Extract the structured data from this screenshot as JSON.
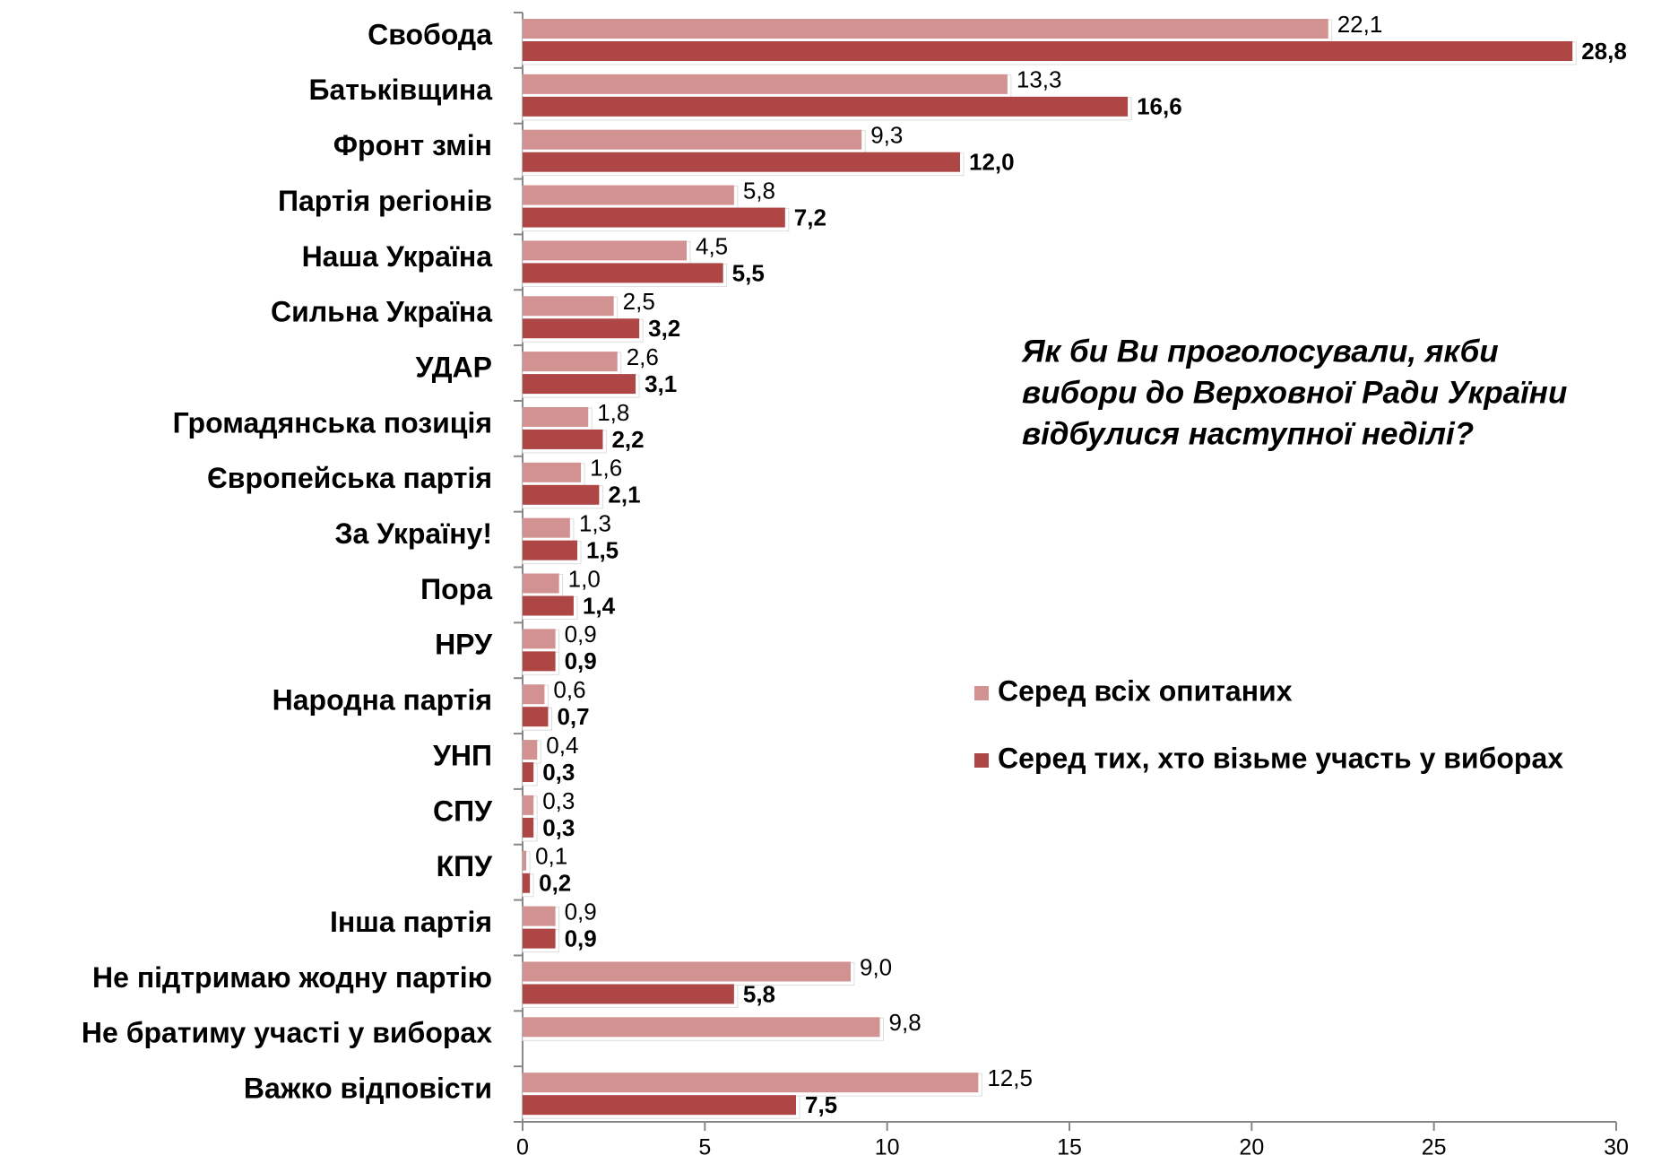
{
  "chart_data": {
    "type": "bar",
    "orientation": "horizontal",
    "annotation": [
      "Як би Ви проголосували, якби",
      "вибори до Верховної Ради України",
      "відбулися наступної неділі?"
    ],
    "categories": [
      "Свобода",
      "Батьківщина",
      "Фронт змін",
      "Партія регіонів",
      "Наша Україна",
      "Сильна Україна",
      "УДАР",
      "Громадянська позиція",
      "Європейська партія",
      "За Україну!",
      "Пора",
      "НРУ",
      "Народна партія",
      "УНП",
      "СПУ",
      "КПУ",
      "Інша партія",
      "Не підтримаю жодну партію",
      "Не братиму участі у виборах",
      "Важко відповісти"
    ],
    "series": [
      {
        "name": "Серед всіх опитаних",
        "color": "#d39292",
        "values": [
          22.1,
          13.3,
          9.3,
          5.8,
          4.5,
          2.5,
          2.6,
          1.8,
          1.6,
          1.3,
          1.0,
          0.9,
          0.6,
          0.4,
          0.3,
          0.1,
          0.9,
          9.0,
          9.8,
          12.5
        ],
        "value_labels": [
          "22,1",
          "13,3",
          "9,3",
          "5,8",
          "4,5",
          "2,5",
          "2,6",
          "1,8",
          "1,6",
          "1,3",
          "1,0",
          "0,9",
          "0,6",
          "0,4",
          "0,3",
          "0,1",
          "0,9",
          "9,0",
          "9,8",
          "12,5"
        ]
      },
      {
        "name": "Серед тих, хто візьме участь у виборах",
        "color": "#ae4646",
        "values": [
          28.8,
          16.6,
          12.0,
          7.2,
          5.5,
          3.2,
          3.1,
          2.2,
          2.1,
          1.5,
          1.4,
          0.9,
          0.7,
          0.3,
          0.3,
          0.2,
          0.9,
          5.8,
          null,
          7.5
        ],
        "value_labels": [
          "28,8",
          "16,6",
          "12,0",
          "7,2",
          "5,5",
          "3,2",
          "3,1",
          "2,2",
          "2,1",
          "1,5",
          "1,4",
          "0,9",
          "0,7",
          "0,3",
          "0,3",
          "0,2",
          "0,9",
          "5,8",
          null,
          "7,5"
        ]
      }
    ],
    "xlim": [
      0,
      30
    ],
    "xticks": [
      0,
      5,
      10,
      15,
      20,
      25,
      30
    ]
  }
}
